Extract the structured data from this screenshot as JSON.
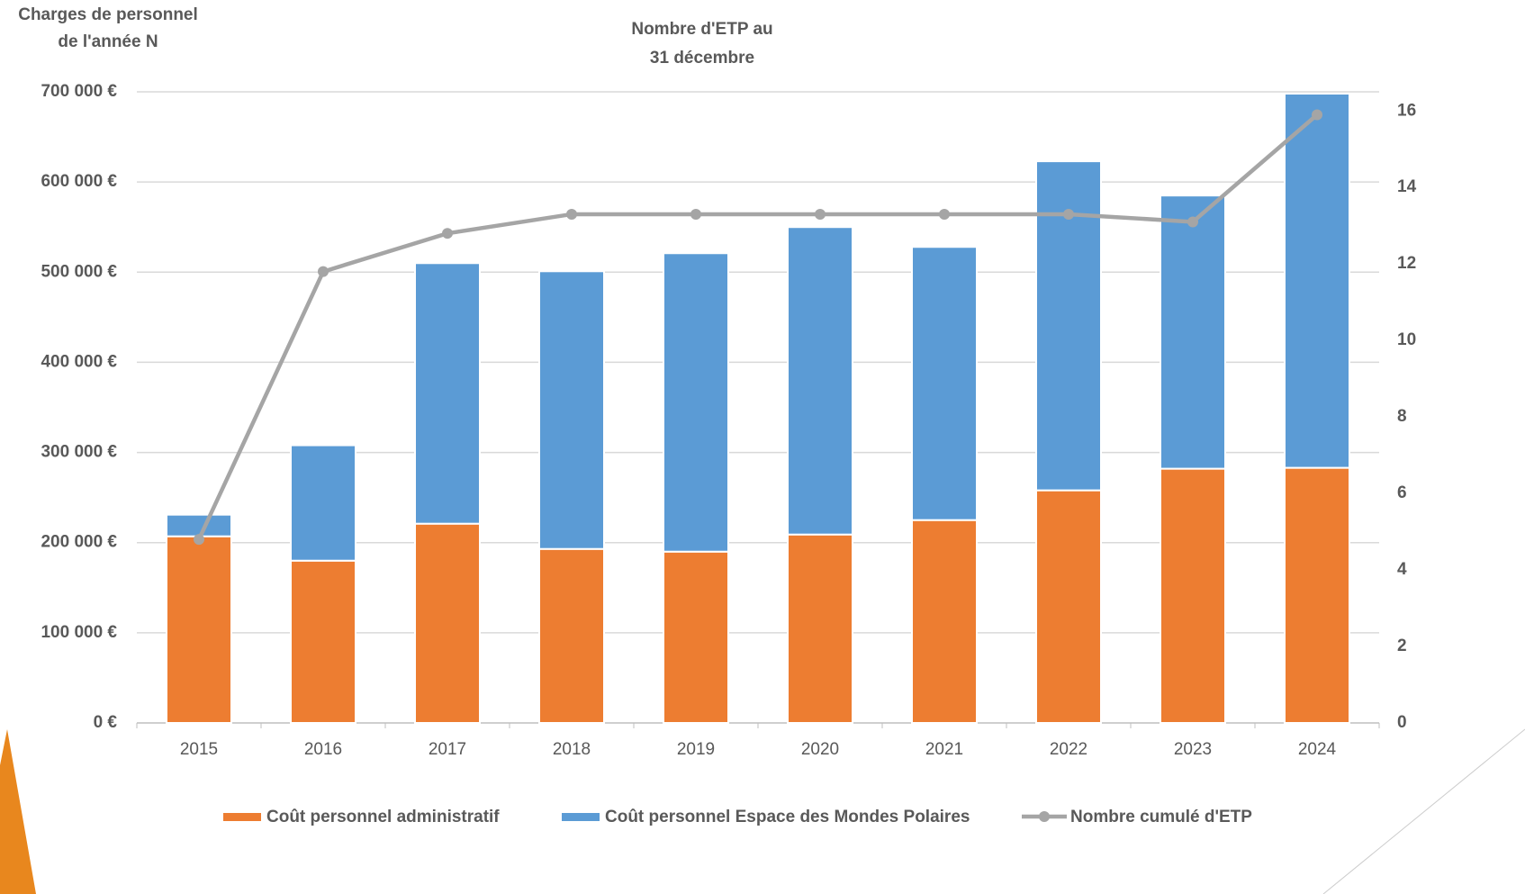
{
  "chart_data": {
    "type": "bar",
    "y_title": [
      "Charges de personnel",
      "de l'année N"
    ],
    "y2_title": [
      "Nombre d'ETP au",
      "31 décembre"
    ],
    "categories": [
      "2015",
      "2016",
      "2017",
      "2018",
      "2019",
      "2020",
      "2021",
      "2022",
      "2023",
      "2024"
    ],
    "series": [
      {
        "name": "Coût personnel administratif",
        "color": "#ed7d31",
        "stack": true,
        "values": [
          207000,
          180000,
          221000,
          193000,
          190000,
          209000,
          225000,
          258000,
          282000,
          283000
        ]
      },
      {
        "name": "Coût personnel Espace des Mondes Polaires",
        "color": "#5b9bd5",
        "stack": true,
        "values": [
          24000,
          128000,
          289000,
          308000,
          331000,
          341000,
          303000,
          365000,
          303000,
          415000
        ]
      },
      {
        "name": "Nombre cumulé d'ETP",
        "color": "#a5a5a5",
        "type": "line",
        "axis": "y2",
        "values": [
          4.8,
          11.8,
          12.8,
          13.3,
          13.3,
          13.3,
          13.3,
          13.3,
          13.1,
          15.9
        ]
      }
    ],
    "ylim": [
      0,
      700000
    ],
    "yticks": [
      {
        "value": 0,
        "label": "0 €"
      },
      {
        "value": 100000,
        "label": "100 000 €"
      },
      {
        "value": 200000,
        "label": "200 000 €"
      },
      {
        "value": 300000,
        "label": "300 000 €"
      },
      {
        "value": 400000,
        "label": "400 000 €"
      },
      {
        "value": 500000,
        "label": "500 000 €"
      },
      {
        "value": 600000,
        "label": "600 000 €"
      },
      {
        "value": 700000,
        "label": "700 000 €"
      }
    ],
    "y2lim": [
      0,
      16.5
    ],
    "y2ticks": [
      0,
      2,
      4,
      6,
      8,
      10,
      12,
      14,
      16
    ],
    "grid": true,
    "legend": "bottom"
  }
}
